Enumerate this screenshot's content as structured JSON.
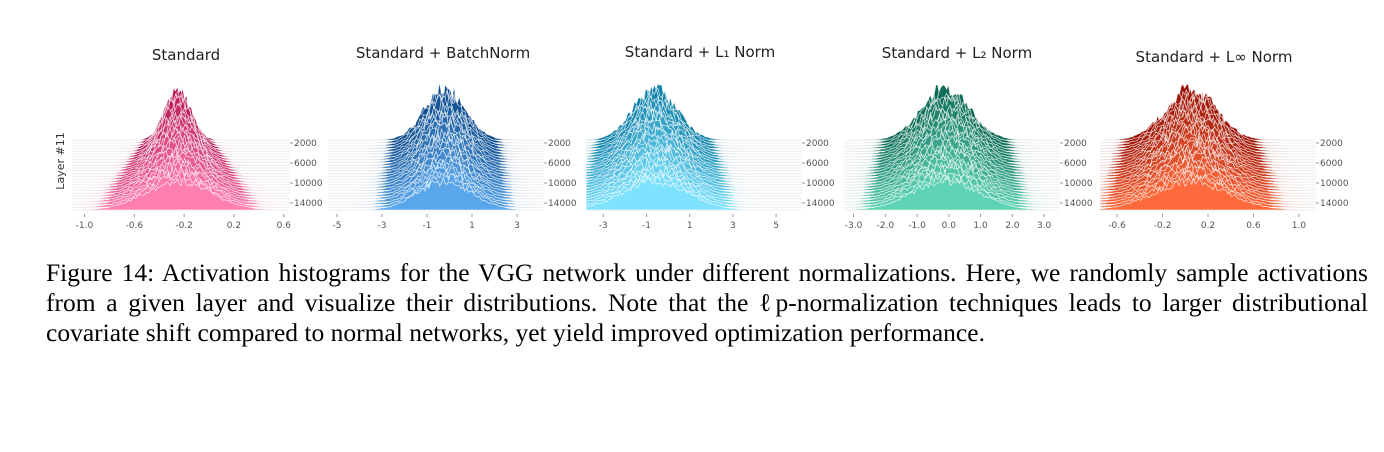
{
  "figure": {
    "caption_label": "Figure 14:",
    "caption_text": "Activation histograms for the VGG network under different normalizations. Here, we randomly sample activations from a given layer and visualize their distributions. Note that the ℓp-normalization techniques leads to larger distributional covariate shift compared to normal networks, yet yield improved optimization performance."
  },
  "chart_data": [
    {
      "type": "area",
      "title": "Standard",
      "ylabel": "Layer #11",
      "x_ticks": [
        "-1.0",
        "-0.6",
        "-0.2",
        "0.2",
        "0.6"
      ],
      "xlim": [
        -1.1,
        0.65
      ],
      "y_ticks": [
        "2000",
        "6000",
        "10000",
        "14000"
      ],
      "steps": [
        0,
        15000
      ],
      "center": -0.25,
      "spread_start": 0.1,
      "spread_end": 0.26,
      "color_back": "#b5104f",
      "color_front": "#ff7fae"
    },
    {
      "type": "area",
      "title": "Standard + BatchNorm",
      "ylabel": "",
      "x_ticks": [
        "-5",
        "-3",
        "-1",
        "1",
        "3"
      ],
      "xlim": [
        -5.4,
        4.2
      ],
      "y_ticks": [
        "2000",
        "6000",
        "10000",
        "14000"
      ],
      "steps": [
        0,
        15000
      ],
      "center": -0.2,
      "spread_start": 0.9,
      "spread_end": 1.2,
      "color_back": "#0a4a8c",
      "color_front": "#5aa6ea"
    },
    {
      "type": "area",
      "title": "Standard + L₁ Norm",
      "ylabel": "",
      "x_ticks": [
        "-3",
        "-1",
        "1",
        "3",
        "5"
      ],
      "xlim": [
        -3.8,
        6.2
      ],
      "y_ticks": [
        "2000",
        "6000",
        "10000",
        "14000"
      ],
      "steps": [
        0,
        15000
      ],
      "center": -0.6,
      "spread_start": 1.0,
      "spread_end": 1.5,
      "color_back": "#0b7fa8",
      "color_front": "#7fe3ff"
    },
    {
      "type": "area",
      "title": "Standard + L₂ Norm",
      "ylabel": "",
      "x_ticks": [
        "-3.0",
        "-2.0",
        "-1.0",
        "0.0",
        "1.0",
        "2.0",
        "3.0"
      ],
      "xlim": [
        -3.3,
        3.5
      ],
      "y_ticks": [
        "2000",
        "6000",
        "10000",
        "14000"
      ],
      "steps": [
        0,
        15000
      ],
      "center": -0.1,
      "spread_start": 0.75,
      "spread_end": 1.05,
      "color_back": "#0b6a55",
      "color_front": "#5fd3b6"
    },
    {
      "type": "area",
      "title": "Standard + L∞ Norm",
      "ylabel": "",
      "x_ticks": [
        "-0.6",
        "-0.2",
        "0.2",
        "0.6",
        "1.0"
      ],
      "xlim": [
        -0.75,
        1.15
      ],
      "y_ticks": [
        "2000",
        "6000",
        "10000",
        "14000"
      ],
      "steps": [
        0,
        15000
      ],
      "center": 0.05,
      "spread_start": 0.22,
      "spread_end": 0.32,
      "color_back": "#9a1106",
      "color_front": "#ff6a3c"
    }
  ]
}
